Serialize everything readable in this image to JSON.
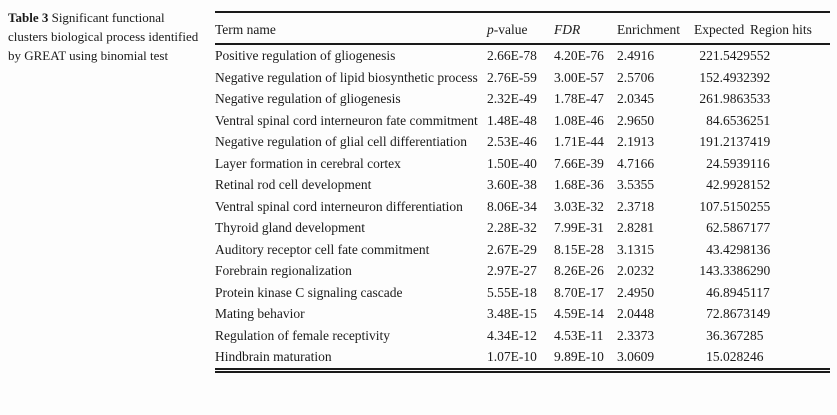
{
  "caption": {
    "label": "Table 3",
    "text": "Significant functional clusters biological process identified by GREAT using binomial test"
  },
  "table": {
    "header": {
      "term": "Term name",
      "p_italic": "p",
      "p_rest": "-value",
      "fdr": "FDR",
      "enrichment": "Enrichment",
      "expected": "Expected",
      "region_hits": "Region hits"
    },
    "rows": [
      {
        "term": "Positive regulation of gliogenesis",
        "p_value": "2.66E-78",
        "fdr": "4.20E-76",
        "enrichment": "2.4916",
        "expected": "221.5429",
        "region_hits": "552"
      },
      {
        "term": "Negative regulation of lipid biosynthetic process",
        "p_value": "2.76E-59",
        "fdr": "3.00E-57",
        "enrichment": "2.5706",
        "expected": "152.4932",
        "region_hits": "392"
      },
      {
        "term": "Negative regulation of gliogenesis",
        "p_value": "2.32E-49",
        "fdr": "1.78E-47",
        "enrichment": "2.0345",
        "expected": "261.9863",
        "region_hits": "533"
      },
      {
        "term": "Ventral spinal cord interneuron fate commitment",
        "p_value": "1.48E-48",
        "fdr": "1.08E-46",
        "enrichment": "2.9650",
        "expected": "84.6536",
        "region_hits": "251"
      },
      {
        "term": "Negative regulation of glial cell differentiation",
        "p_value": "2.53E-46",
        "fdr": "1.71E-44",
        "enrichment": "2.1913",
        "expected": "191.2137",
        "region_hits": "419"
      },
      {
        "term": "Layer formation in cerebral cortex",
        "p_value": "1.50E-40",
        "fdr": "7.66E-39",
        "enrichment": "4.7166",
        "expected": "24.5939",
        "region_hits": "116"
      },
      {
        "term": "Retinal rod cell development",
        "p_value": "3.60E-38",
        "fdr": "1.68E-36",
        "enrichment": "3.5355",
        "expected": "42.9928",
        "region_hits": "152"
      },
      {
        "term": "Ventral spinal cord interneuron differentiation",
        "p_value": "8.06E-34",
        "fdr": "3.03E-32",
        "enrichment": "2.3718",
        "expected": "107.5150",
        "region_hits": "255"
      },
      {
        "term": "Thyroid gland development",
        "p_value": "2.28E-32",
        "fdr": "7.99E-31",
        "enrichment": "2.8281",
        "expected": "62.5867",
        "region_hits": "177"
      },
      {
        "term": "Auditory receptor cell fate commitment",
        "p_value": "2.67E-29",
        "fdr": "8.15E-28",
        "enrichment": "3.1315",
        "expected": "43.4298",
        "region_hits": "136"
      },
      {
        "term": "Forebrain regionalization",
        "p_value": "2.97E-27",
        "fdr": "8.26E-26",
        "enrichment": "2.0232",
        "expected": "143.3386",
        "region_hits": "290"
      },
      {
        "term": "Protein kinase C signaling cascade",
        "p_value": "5.55E-18",
        "fdr": "8.70E-17",
        "enrichment": "2.4950",
        "expected": "46.8945",
        "region_hits": "117"
      },
      {
        "term": "Mating behavior",
        "p_value": "3.48E-15",
        "fdr": "4.59E-14",
        "enrichment": "2.0448",
        "expected": "72.8673",
        "region_hits": "149"
      },
      {
        "term": "Regulation of female receptivity",
        "p_value": "4.34E-12",
        "fdr": "4.53E-11",
        "enrichment": "2.3373",
        "expected": "36.3672",
        "region_hits": "85"
      },
      {
        "term": "Hindbrain maturation",
        "p_value": "1.07E-10",
        "fdr": "9.89E-10",
        "enrichment": "3.0609",
        "expected": "15.0282",
        "region_hits": "46"
      }
    ]
  },
  "colors": {
    "text": "#1b1b1b",
    "rule": "#1a1a1a",
    "background": "#fdfdfd"
  }
}
